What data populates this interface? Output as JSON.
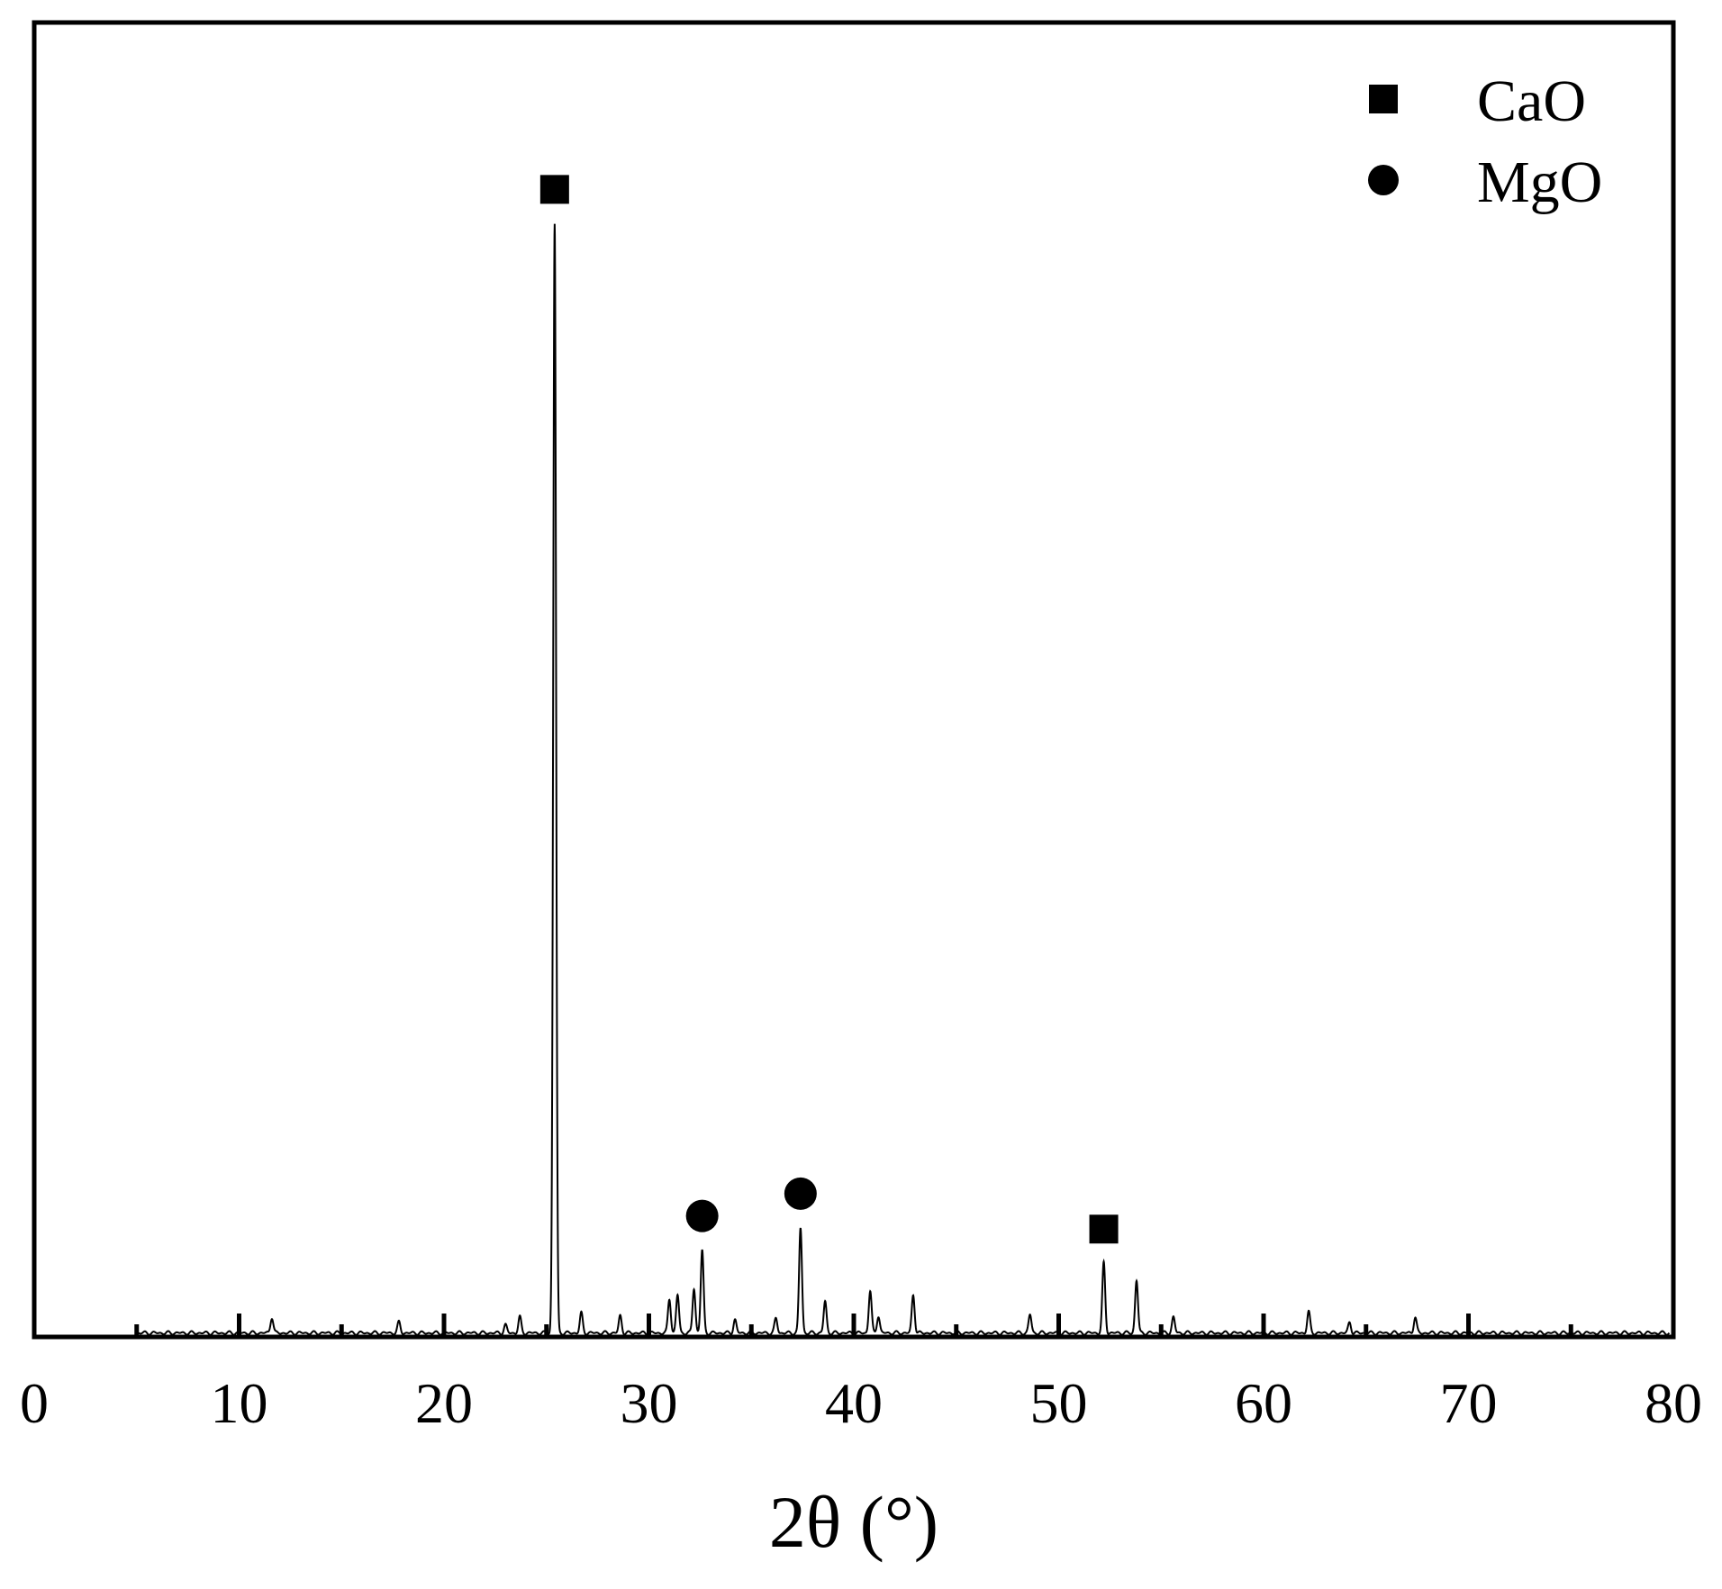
{
  "chart_data": {
    "type": "line",
    "xlabel": "2θ (°)",
    "ylabel": "",
    "xlim": [
      0,
      80
    ],
    "ylim": [
      0,
      100
    ],
    "x_ticks": [
      0,
      10,
      20,
      30,
      40,
      50,
      60,
      70,
      80
    ],
    "x_tick_labels": [
      "0",
      "10",
      "20",
      "30",
      "40",
      "50",
      "60",
      "70",
      "80"
    ],
    "x_minor_ticks": [
      5,
      15,
      25,
      35,
      45,
      55,
      65,
      75
    ],
    "y_ticks_shown": false,
    "grid": false,
    "legend": {
      "position": "top-right",
      "entries": [
        {
          "label": "CaO",
          "marker": "square"
        },
        {
          "label": "MgO",
          "marker": "circle"
        }
      ]
    },
    "series": [
      {
        "color": "#000000",
        "peaks": [
          {
            "x": 11.6,
            "y": 1.2
          },
          {
            "x": 17.8,
            "y": 0.8
          },
          {
            "x": 23.0,
            "y": 0.6
          },
          {
            "x": 23.7,
            "y": 1.2
          },
          {
            "x": 25.4,
            "y": 84.4
          },
          {
            "x": 26.7,
            "y": 1.5
          },
          {
            "x": 28.6,
            "y": 1.3
          },
          {
            "x": 31.0,
            "y": 2.6
          },
          {
            "x": 31.4,
            "y": 2.9
          },
          {
            "x": 32.2,
            "y": 3.4
          },
          {
            "x": 32.6,
            "y": 6.3
          },
          {
            "x": 34.2,
            "y": 1.0
          },
          {
            "x": 36.2,
            "y": 1.1
          },
          {
            "x": 37.4,
            "y": 8.0
          },
          {
            "x": 38.6,
            "y": 2.4
          },
          {
            "x": 40.8,
            "y": 3.2
          },
          {
            "x": 41.2,
            "y": 1.3
          },
          {
            "x": 42.9,
            "y": 2.9
          },
          {
            "x": 48.6,
            "y": 1.4
          },
          {
            "x": 52.2,
            "y": 5.3
          },
          {
            "x": 53.8,
            "y": 4.0
          },
          {
            "x": 55.6,
            "y": 1.2
          },
          {
            "x": 62.2,
            "y": 1.6
          },
          {
            "x": 64.2,
            "y": 0.8
          },
          {
            "x": 67.4,
            "y": 1.2
          }
        ],
        "baseline": 0.3
      }
    ],
    "annotations": [
      {
        "label": "CaO",
        "marker": "square",
        "x": 25.4
      },
      {
        "label": "MgO",
        "marker": "circle",
        "x": 32.6
      },
      {
        "label": "MgO",
        "marker": "circle",
        "x": 37.4
      },
      {
        "label": "CaO",
        "marker": "square",
        "x": 52.2
      }
    ]
  }
}
